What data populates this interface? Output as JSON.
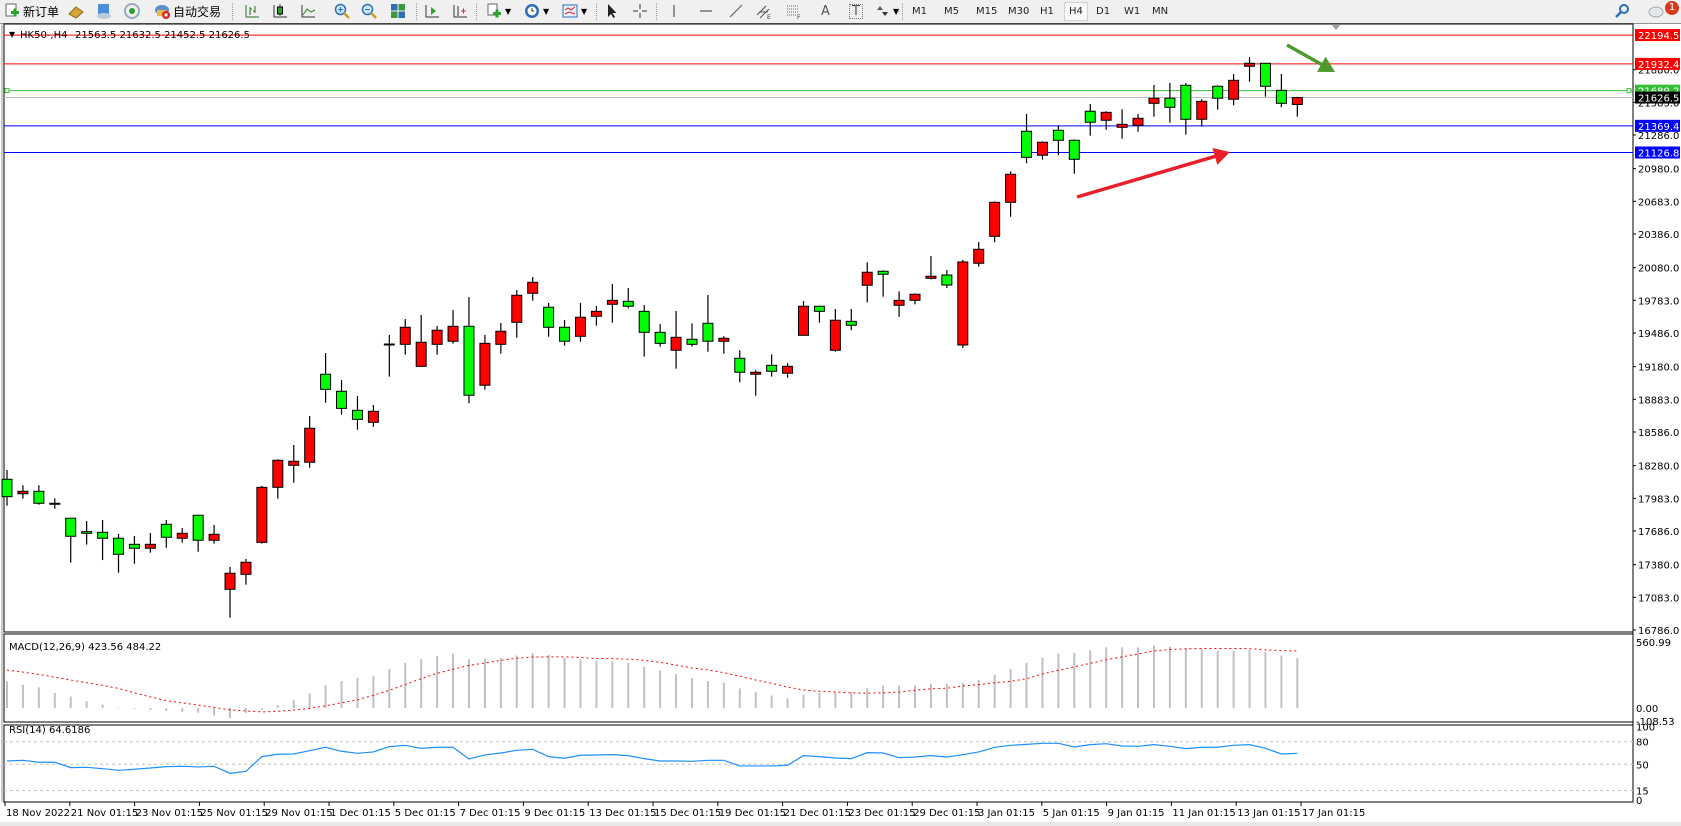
{
  "toolbar": {
    "new_order_label": "新订单",
    "auto_trade_label": "自动交易",
    "timeframes": [
      "M1",
      "M5",
      "M15",
      "M30",
      "H1",
      "H4",
      "D1",
      "W1",
      "MN"
    ],
    "active_timeframe": "H4",
    "notification_count": "1",
    "drawing_tools": {
      "channel_suffix": "E",
      "fibo_suffix": "F",
      "text_tool": "A",
      "label_tool": "T"
    }
  },
  "chart": {
    "symbol_header": "HK50-,H4",
    "ohlc_header": "21563.5 21632.5 21452.5 21626.5",
    "up_color": "#ff0000",
    "down_color": "#00ff00",
    "hlines": [
      {
        "value": 22194.5,
        "label": "22194.5",
        "color": "#ff0000"
      },
      {
        "value": 21932.4,
        "label": "21932.4",
        "color": "#ff0000"
      },
      {
        "value": 21689.2,
        "label": "21689.2",
        "color": "#33c033"
      },
      {
        "value": 21626.5,
        "label": "21626.5",
        "color": "#c0c0c0",
        "bid": true
      },
      {
        "value": 21369.4,
        "label": "21369.4",
        "color": "#0000ff"
      },
      {
        "value": 21126.8,
        "label": "21126.8",
        "color": "#0000ff"
      }
    ],
    "annotations": [
      {
        "type": "arrow",
        "color": "#e8202a",
        "direction": "up-right"
      },
      {
        "type": "arrow",
        "color": "#4f9a2f",
        "direction": "down-right"
      }
    ]
  },
  "chart_data": [
    {
      "type": "candlestick",
      "title": "HK50-,H4",
      "x_tick_labels": [
        "18 Nov 2022",
        "21 Nov 01:15",
        "23 Nov 01:15",
        "25 Nov 01:15",
        "29 Nov 01:15",
        "1 Dec 01:15",
        "5 Dec 01:15",
        "7 Dec 01:15",
        "9 Dec 01:15",
        "13 Dec 01:15",
        "15 Dec 01:15",
        "19 Dec 01:15",
        "21 Dec 01:15",
        "23 Dec 01:15",
        "29 Dec 01:15",
        "3 Jan 01:15",
        "5 Jan 01:15",
        "9 Jan 01:15",
        "11 Jan 01:15",
        "13 Jan 01:15",
        "17 Jan 01:15"
      ],
      "y_tick_labels": [
        "21880.0",
        "21583.0",
        "21286.0",
        "20980.0",
        "20683.0",
        "20386.0",
        "20080.0",
        "19783.0",
        "19486.0",
        "19180.0",
        "18883.0",
        "18586.0",
        "18280.0",
        "17983.0",
        "17686.0",
        "17380.0",
        "17083.0",
        "16786.0"
      ],
      "ylim": [
        16786,
        22194.5
      ],
      "grid": false,
      "ohlc_order": [
        "open",
        "high",
        "low",
        "close"
      ],
      "candles": [
        [
          18156,
          18241,
          17916,
          17998
        ],
        [
          18025,
          18102,
          17980,
          18047
        ],
        [
          18047,
          18102,
          17925,
          17938
        ],
        [
          17938,
          17983,
          17889,
          17929
        ],
        [
          17802,
          17805,
          17398,
          17638
        ],
        [
          17680,
          17777,
          17562,
          17665
        ],
        [
          17674,
          17786,
          17422,
          17620
        ],
        [
          17620,
          17659,
          17307,
          17474
        ],
        [
          17565,
          17641,
          17389,
          17529
        ],
        [
          17529,
          17668,
          17489,
          17565
        ],
        [
          17747,
          17786,
          17534,
          17629
        ],
        [
          17620,
          17713,
          17580,
          17665
        ],
        [
          17829,
          17835,
          17498,
          17602
        ],
        [
          17602,
          17741,
          17571,
          17656
        ],
        [
          17156,
          17359,
          16898,
          17302
        ],
        [
          17292,
          17432,
          17198,
          17402
        ],
        [
          17583,
          18095,
          17571,
          18083
        ],
        [
          18083,
          18338,
          17980,
          18329
        ],
        [
          18283,
          18468,
          18125,
          18320
        ],
        [
          18311,
          18731,
          18261,
          18620
        ],
        [
          19111,
          19304,
          18852,
          18974
        ],
        [
          18956,
          19059,
          18743,
          18801
        ],
        [
          18783,
          18913,
          18607,
          18701
        ],
        [
          18674,
          18831,
          18634,
          18774
        ],
        [
          19380,
          19468,
          19089,
          19386
        ],
        [
          19383,
          19613,
          19289,
          19538
        ],
        [
          19183,
          19650,
          19180,
          19402
        ],
        [
          19383,
          19550,
          19289,
          19511
        ],
        [
          19411,
          19695,
          19389,
          19547
        ],
        [
          19547,
          19813,
          18847,
          18920
        ],
        [
          19011,
          19468,
          18971,
          19392
        ],
        [
          19383,
          19577,
          19298,
          19502
        ],
        [
          19583,
          19877,
          19443,
          19829
        ],
        [
          19847,
          19995,
          19780,
          19947
        ],
        [
          19720,
          19759,
          19452,
          19538
        ],
        [
          19538,
          19604,
          19371,
          19411
        ],
        [
          19456,
          19759,
          19407,
          19629
        ],
        [
          19638,
          19732,
          19552,
          19683
        ],
        [
          19747,
          19932,
          19580,
          19783
        ],
        [
          19774,
          19895,
          19711,
          19729
        ],
        [
          19683,
          19741,
          19271,
          19492
        ],
        [
          19492,
          19568,
          19362,
          19392
        ],
        [
          19329,
          19686,
          19162,
          19447
        ],
        [
          19429,
          19574,
          19362,
          19383
        ],
        [
          19574,
          19832,
          19316,
          19411
        ],
        [
          19411,
          19456,
          19298,
          19438
        ],
        [
          19256,
          19329,
          19038,
          19129
        ],
        [
          19111,
          19147,
          18916,
          19129
        ],
        [
          19192,
          19292,
          19089,
          19138
        ],
        [
          19120,
          19211,
          19080,
          19183
        ],
        [
          19465,
          19777,
          19462,
          19729
        ],
        [
          19729,
          19735,
          19580,
          19683
        ],
        [
          19329,
          19704,
          19316,
          19602
        ],
        [
          19592,
          19704,
          19511,
          19556
        ],
        [
          19920,
          20129,
          19765,
          20038
        ],
        [
          20047,
          20056,
          19816,
          20020
        ],
        [
          19738,
          19865,
          19634,
          19783
        ],
        [
          19783,
          19847,
          19747,
          19838
        ],
        [
          19983,
          20186,
          19974,
          20002
        ],
        [
          20013,
          20058,
          19895,
          19922
        ],
        [
          19377,
          20150,
          19350,
          20132
        ],
        [
          20120,
          20313,
          20089,
          20247
        ],
        [
          20365,
          20683,
          20311,
          20674
        ],
        [
          20674,
          20956,
          20543,
          20929
        ],
        [
          21320,
          21477,
          21029,
          21083
        ],
        [
          21102,
          21229,
          21062,
          21220
        ],
        [
          21329,
          21374,
          21102,
          21238
        ],
        [
          21238,
          21247,
          20934,
          21065
        ],
        [
          21502,
          21568,
          21280,
          21402
        ],
        [
          21420,
          21502,
          21334,
          21492
        ],
        [
          21356,
          21520,
          21252,
          21383
        ],
        [
          21374,
          21477,
          21316,
          21438
        ],
        [
          21574,
          21741,
          21452,
          21620
        ],
        [
          21620,
          21759,
          21398,
          21538
        ],
        [
          21738,
          21759,
          21289,
          21429
        ],
        [
          21429,
          21611,
          21362,
          21592
        ],
        [
          21729,
          21738,
          21516,
          21620
        ],
        [
          21611,
          21841,
          21556,
          21783
        ],
        [
          21911,
          21995,
          21771,
          21938
        ],
        [
          21938,
          21940,
          21634,
          21729
        ],
        [
          21692,
          21841,
          21538,
          21574
        ],
        [
          21563.5,
          21632.5,
          21452.5,
          21626.5
        ]
      ]
    },
    {
      "type": "bar",
      "title": "MACD(12,26,9) 423.56 484.22",
      "y_tick_labels": [
        "560.99",
        "0.00",
        "-108.53"
      ],
      "ylim": [
        -108.53,
        560.99
      ],
      "series": [
        {
          "kind": "histogram",
          "color": "#c0c0c0",
          "values": [
            227,
            198,
            176,
            129,
            98,
            59,
            28,
            3,
            -7,
            -18,
            -23,
            -32,
            -41,
            -64,
            -86,
            -41,
            -14,
            24,
            67,
            124,
            194,
            229,
            256,
            271,
            333,
            384,
            415,
            441,
            461,
            415,
            420,
            426,
            446,
            467,
            451,
            426,
            410,
            402,
            399,
            384,
            350,
            318,
            287,
            254,
            229,
            214,
            167,
            137,
            106,
            83,
            114,
            129,
            137,
            137,
            167,
            191,
            191,
            191,
            207,
            207,
            214,
            238,
            284,
            333,
            384,
            430,
            461,
            470,
            492,
            516,
            516,
            516,
            531,
            521,
            508,
            501,
            485,
            485,
            492,
            477,
            446,
            423.56
          ]
        },
        {
          "kind": "signal",
          "color": "#ff0000",
          "style": "dotted",
          "values": [
            322,
            305,
            285,
            262,
            238,
            215,
            192,
            166,
            129,
            95,
            62,
            44,
            25,
            5,
            -16,
            -25,
            -33,
            -28,
            -18,
            -3,
            19,
            44,
            70,
            108,
            150,
            200,
            250,
            295,
            330,
            362,
            383,
            405,
            423,
            433,
            435,
            435,
            430,
            421,
            420,
            415,
            405,
            388,
            365,
            340,
            325,
            300,
            271,
            238,
            210,
            178,
            153,
            142,
            136,
            128,
            126,
            129,
            135,
            151,
            163,
            168,
            187,
            199,
            215,
            226,
            249,
            290,
            320,
            350,
            380,
            410,
            435,
            460,
            485,
            497,
            503,
            506,
            506,
            506,
            505,
            494,
            488,
            484.22
          ]
        }
      ]
    },
    {
      "type": "line",
      "title": "RSI(14) 64.6186",
      "y_tick_labels": [
        "100",
        "80",
        "50",
        "15",
        "0"
      ],
      "levels": [
        80,
        50,
        15
      ],
      "ylim": [
        0,
        100
      ],
      "series": [
        {
          "color": "#1e90ff",
          "values": [
            54.4,
            55.3,
            52.7,
            52.7,
            45.6,
            46,
            44.2,
            42,
            43.4,
            45.1,
            46.9,
            47.3,
            46.5,
            47.3,
            38,
            40.7,
            60.2,
            63.3,
            63.7,
            68.1,
            72.6,
            67.3,
            64.6,
            66.4,
            73.5,
            75.2,
            71.2,
            72.6,
            72.6,
            57.1,
            62.4,
            65,
            68.6,
            69.9,
            60.2,
            58,
            62,
            62.4,
            62.8,
            61.5,
            57.5,
            54.4,
            54.4,
            54,
            55.3,
            55.3,
            47.8,
            47.8,
            47.8,
            48.7,
            61.5,
            60.2,
            58.4,
            57.5,
            65.5,
            65,
            58.8,
            59.7,
            61.5,
            59.7,
            62.8,
            66.4,
            72.6,
            75.2,
            76.5,
            77.9,
            77.9,
            73,
            76.1,
            77.4,
            74.3,
            73.9,
            76.1,
            73.9,
            70.8,
            72.6,
            72.6,
            75.2,
            76.1,
            71.2,
            63.7,
            64.6186
          ]
        }
      ]
    }
  ]
}
